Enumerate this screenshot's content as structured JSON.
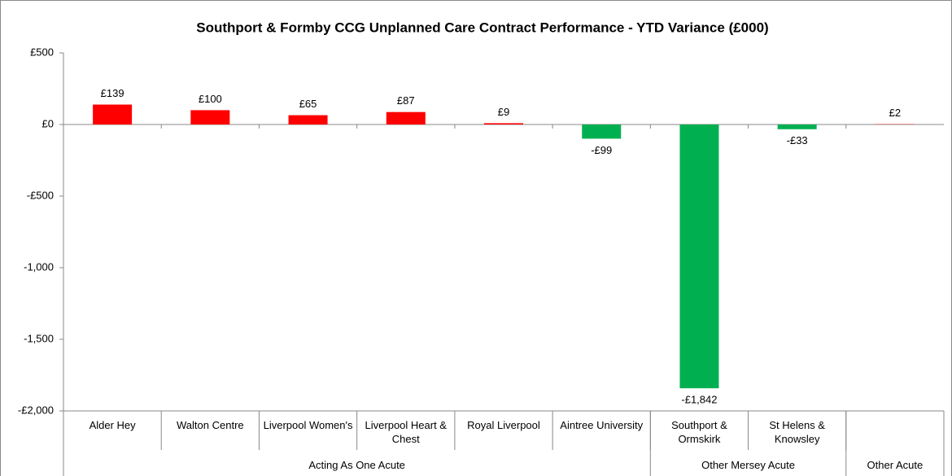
{
  "chart_data": {
    "type": "bar",
    "title": "Southport & Formby CCG Unplanned Care Contract Performance - YTD Variance (£000)",
    "categories": [
      "Alder Hey",
      "Walton Centre",
      "Liverpool Women's",
      "Liverpool Heart & Chest",
      "Royal Liverpool",
      "Aintree University",
      "Southport & Ormskirk",
      "St Helens & Knowsley",
      null
    ],
    "groups": [
      {
        "name": "Acting As One Acute",
        "count": 6
      },
      {
        "name": "Other Mersey Acute",
        "count": 2
      },
      {
        "name": "Other Acute",
        "count": 1
      }
    ],
    "values": [
      139,
      100,
      65,
      87,
      9,
      -99,
      -1842,
      -33,
      2
    ],
    "value_labels": [
      "£139",
      "£100",
      "£65",
      "£87",
      "£9",
      "-£99",
      "-£1,842",
      "-£33",
      "£2"
    ],
    "colors": [
      "#ff0000",
      "#ff0000",
      "#ff0000",
      "#ff0000",
      "#ff0000",
      "#00b050",
      "#00b050",
      "#00b050",
      "#ff0000"
    ],
    "ylim": [
      -2000,
      500
    ],
    "yticks": [
      {
        "value": 500,
        "label": "£500"
      },
      {
        "value": 0,
        "label": "£0"
      },
      {
        "value": -500,
        "label": "-£500"
      },
      {
        "value": -1000,
        "label": "-1,000"
      },
      {
        "value": -1500,
        "label": "-1,500"
      },
      {
        "value": -2000,
        "label": "-£2,000"
      }
    ],
    "grid": false
  }
}
